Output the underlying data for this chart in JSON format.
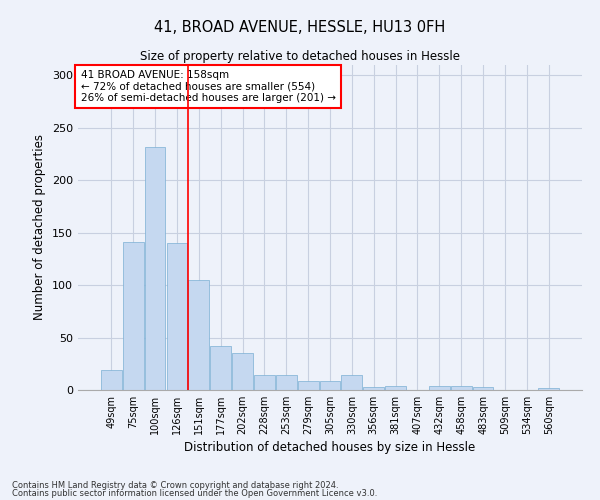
{
  "title": "41, BROAD AVENUE, HESSLE, HU13 0FH",
  "subtitle": "Size of property relative to detached houses in Hessle",
  "xlabel": "Distribution of detached houses by size in Hessle",
  "ylabel": "Number of detached properties",
  "categories": [
    "49sqm",
    "75sqm",
    "100sqm",
    "126sqm",
    "151sqm",
    "177sqm",
    "202sqm",
    "228sqm",
    "253sqm",
    "279sqm",
    "305sqm",
    "330sqm",
    "356sqm",
    "381sqm",
    "407sqm",
    "432sqm",
    "458sqm",
    "483sqm",
    "509sqm",
    "534sqm",
    "560sqm"
  ],
  "values": [
    19,
    141,
    232,
    140,
    105,
    42,
    35,
    14,
    14,
    9,
    9,
    14,
    3,
    4,
    0,
    4,
    4,
    3,
    0,
    0,
    2
  ],
  "bar_color": "#c5d8f0",
  "bar_edge_color": "#7bafd4",
  "grid_color": "#c8d0e0",
  "background_color": "#eef2fa",
  "annotation_text": "41 BROAD AVENUE: 158sqm\n← 72% of detached houses are smaller (554)\n26% of semi-detached houses are larger (201) →",
  "annotation_box_color": "white",
  "annotation_box_edge": "red",
  "property_line_x": 3.5,
  "property_line_color": "red",
  "ylim": [
    0,
    310
  ],
  "yticks": [
    0,
    50,
    100,
    150,
    200,
    250,
    300
  ],
  "footnote1": "Contains HM Land Registry data © Crown copyright and database right 2024.",
  "footnote2": "Contains public sector information licensed under the Open Government Licence v3.0."
}
